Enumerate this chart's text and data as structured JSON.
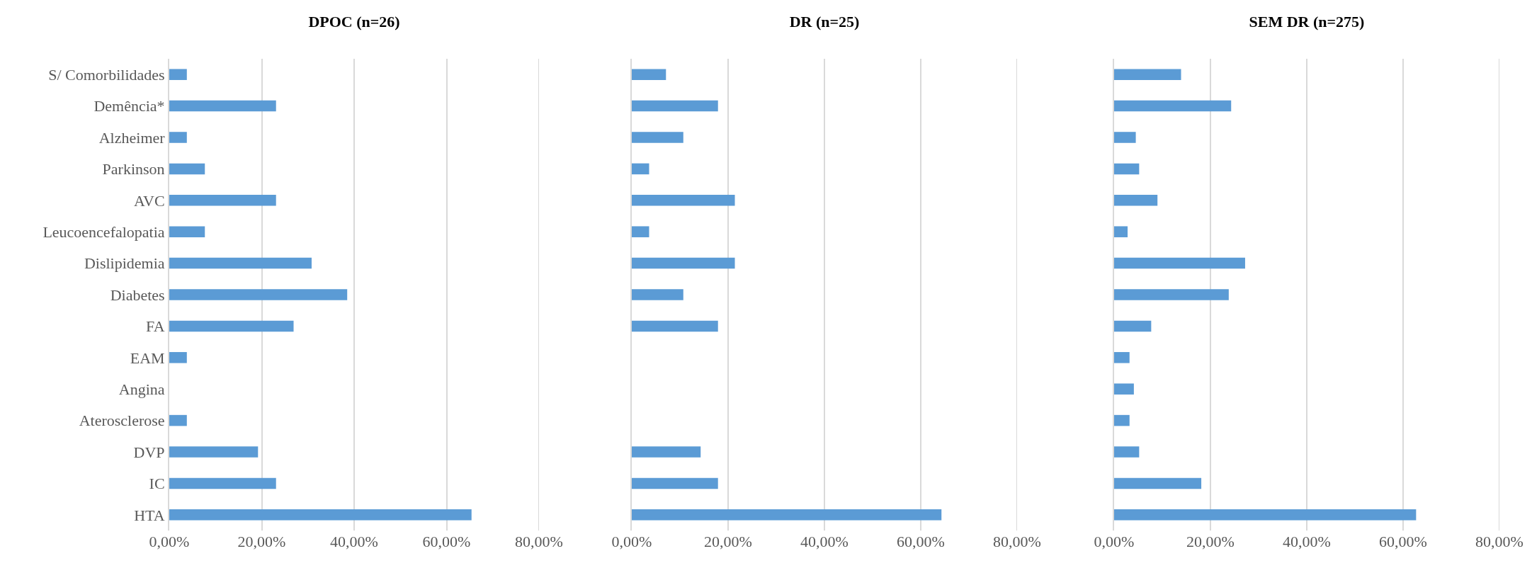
{
  "chart_data": [
    {
      "type": "bar",
      "orientation": "horizontal",
      "title": "DPOC (n=26)",
      "categories": [
        "S/ Comorbilidades",
        "Demência*",
        "Alzheimer",
        "Parkinson",
        "AVC",
        "Leucoencefalopatia",
        "Dislipidemia",
        "Diabetes",
        "FA",
        "EAM",
        "Angina",
        "Aterosclerose",
        "DVP",
        "IC",
        "HTA"
      ],
      "color": "#5b9bd5",
      "values": [
        3.8,
        23.1,
        3.8,
        7.7,
        23.1,
        7.7,
        30.8,
        38.5,
        26.9,
        3.8,
        0,
        3.8,
        19.2,
        23.1,
        65.4
      ],
      "xlim": [
        0,
        80
      ],
      "xticks": [
        {
          "value": 0,
          "label": "0,00%"
        },
        {
          "value": 20,
          "label": "20,00%"
        },
        {
          "value": 40,
          "label": "40,00%"
        },
        {
          "value": 60,
          "label": "60,00%"
        },
        {
          "value": 80,
          "label": "80,00%"
        }
      ],
      "grid": "x"
    },
    {
      "type": "bar",
      "orientation": "horizontal",
      "title": "DR (n=25)",
      "categories": [
        null,
        null,
        null,
        null,
        null,
        null,
        null,
        null,
        null,
        null,
        null,
        null,
        null,
        null,
        null
      ],
      "color": "#5b9bd5",
      "values": [
        7.1,
        17.9,
        10.7,
        3.6,
        21.4,
        3.6,
        21.4,
        10.7,
        17.9,
        0,
        0,
        0,
        14.3,
        17.9,
        64.3
      ],
      "xlim": [
        0,
        80
      ],
      "xticks": [
        {
          "value": 0,
          "label": "0,00%"
        },
        {
          "value": 20,
          "label": "20,00%"
        },
        {
          "value": 40,
          "label": "40,00%"
        },
        {
          "value": 60,
          "label": "60,00%"
        },
        {
          "value": 80,
          "label": "80,00%"
        }
      ],
      "grid": "x",
      "tick_labels": "x"
    },
    {
      "type": "bar",
      "orientation": "horizontal",
      "title": "SEM DR (n=275)",
      "categories": [
        null,
        null,
        null,
        null,
        null,
        null,
        null,
        null,
        null,
        null,
        null,
        null,
        null,
        null,
        null
      ],
      "color": "#5b9bd5",
      "values": [
        13.9,
        24.3,
        4.5,
        5.2,
        9.0,
        2.8,
        27.2,
        23.8,
        7.7,
        3.2,
        4.1,
        3.2,
        5.2,
        18.1,
        62.7
      ],
      "xlim": [
        0,
        80
      ],
      "xticks": [
        {
          "value": 0,
          "label": "0,00%"
        },
        {
          "value": 20,
          "label": "20,00%"
        },
        {
          "value": 40,
          "label": "40,00%"
        },
        {
          "value": 60,
          "label": "60,00%"
        },
        {
          "value": 80,
          "label": "80,00%"
        }
      ],
      "grid": "x",
      "tick_labels": "x"
    }
  ]
}
